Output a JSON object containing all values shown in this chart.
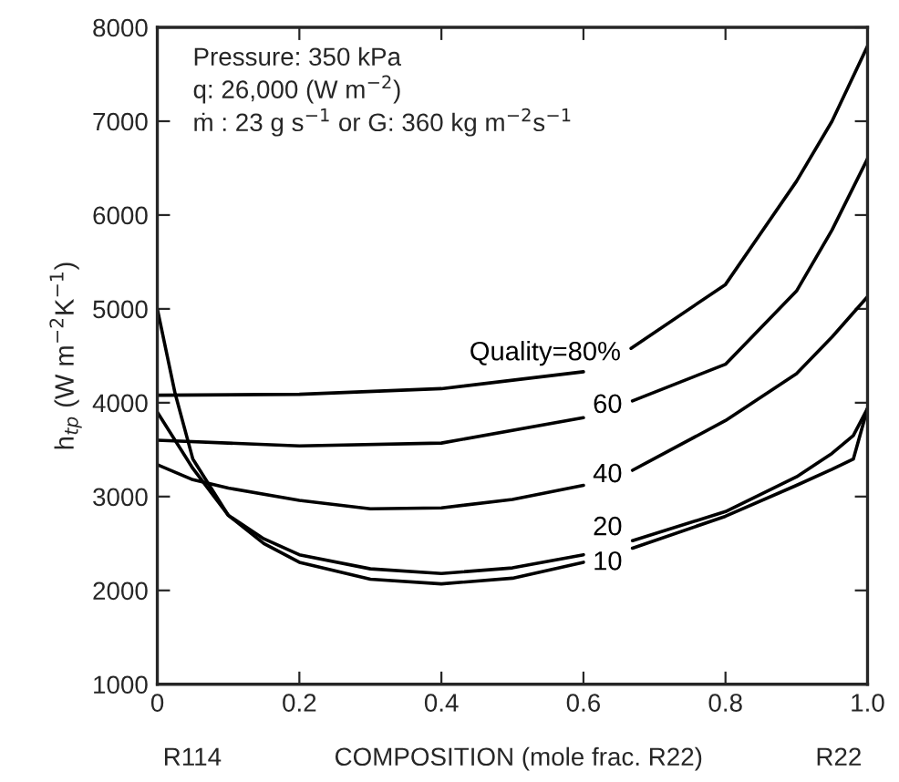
{
  "chart_data": {
    "type": "line",
    "ylabel": "h$_{tp}$ (W m$^{−2}$K$^{−1}$)",
    "xlabel": "R114                COMPOSITION (mole frac. R22)                R22",
    "xlim": [
      0,
      1
    ],
    "ylim": [
      1000,
      8000
    ],
    "xticks": [
      0,
      0.2,
      0.4,
      0.6,
      0.8,
      {
        "value": 1,
        "label": "1.0"
      }
    ],
    "yticks": [
      1000,
      2000,
      3000,
      4000,
      5000,
      6000,
      7000,
      8000
    ],
    "grid": false,
    "legend": false,
    "marker": "none",
    "line_style": "solid",
    "series": [
      {
        "name": "Quality=80%",
        "color": "#000000",
        "x": [
          0,
          0.2,
          0.4,
          0.6,
          0.63,
          0.667,
          0.8,
          0.9,
          0.95,
          1.0
        ],
        "values": [
          4080,
          4090,
          4150,
          4330,
          null,
          4580,
          5260,
          6360,
          7000,
          7800
        ]
      },
      {
        "name": "60",
        "color": "#000000",
        "x": [
          0,
          0.2,
          0.4,
          0.6,
          0.63,
          0.669,
          0.8,
          0.9,
          0.95,
          1.0
        ],
        "values": [
          3600,
          3540,
          3570,
          3840,
          null,
          4020,
          4410,
          5190,
          5840,
          6600
        ]
      },
      {
        "name": "40",
        "color": "#000000",
        "x": [
          0,
          0.05,
          0.1,
          0.2,
          0.3,
          0.4,
          0.5,
          0.6,
          0.63,
          0.669,
          0.8,
          0.9,
          0.95,
          1.0
        ],
        "values": [
          3340,
          3180,
          3090,
          2960,
          2870,
          2880,
          2970,
          3120,
          null,
          3280,
          3810,
          4310,
          4700,
          5130
        ]
      },
      {
        "name": "20",
        "color": "#000000",
        "x": [
          0,
          0.05,
          0.1,
          0.15,
          0.2,
          0.3,
          0.4,
          0.5,
          0.6,
          0.63,
          0.669,
          0.8,
          0.9,
          0.95,
          0.98,
          1.0
        ],
        "values": [
          3900,
          3300,
          2800,
          2550,
          2380,
          2230,
          2180,
          2240,
          2380,
          null,
          2530,
          2840,
          3210,
          3460,
          3650,
          3940
        ]
      },
      {
        "name": "10",
        "color": "#000000",
        "x": [
          0,
          0.025,
          0.05,
          0.1,
          0.15,
          0.2,
          0.3,
          0.4,
          0.5,
          0.6,
          0.63,
          0.669,
          0.8,
          0.9,
          0.95,
          0.98,
          1.0
        ],
        "values": [
          5000,
          4100,
          3400,
          2800,
          2500,
          2300,
          2120,
          2070,
          2130,
          2300,
          null,
          2450,
          2790,
          3120,
          3290,
          3400,
          3940
        ]
      }
    ],
    "annotations": [
      "Pressure: 350 kPa\nq: 26,000 (W m$^{−2}$)\nṁ : 23 g s$^{−1}$ or G: 360 kg m$^{−2}$s$^{−1}$"
    ]
  }
}
